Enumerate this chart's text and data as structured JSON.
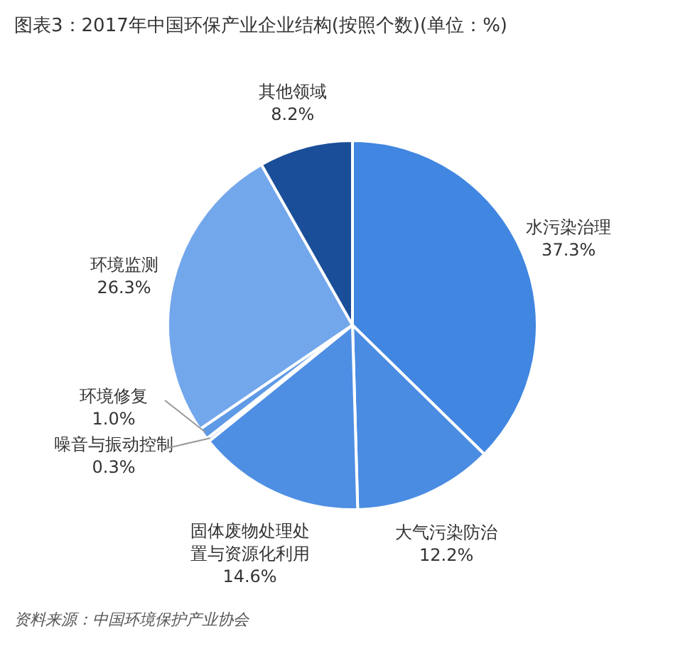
{
  "chart_data": {
    "type": "pie",
    "title": "图表3：2017年中国环保产业企业结构(按照个数)(单位：%)",
    "categories": [
      "水污染治理",
      "大气污染防治",
      "固体废物处理处置与资源化利用",
      "噪音与振动控制",
      "环境修复",
      "环境监测",
      "其他领域"
    ],
    "values": [
      37.3,
      12.2,
      14.6,
      0.3,
      1.0,
      26.3,
      8.2
    ],
    "colors": [
      "#4186e0",
      "#4a8ce2",
      "#4f8fe3",
      "#8db5ee",
      "#5f9ae6",
      "#73a7ec",
      "#1a4e98"
    ],
    "value_labels": [
      "37.3%",
      "12.2%",
      "14.6%",
      "0.3%",
      "1.0%",
      "26.3%",
      "8.2%"
    ],
    "annotations": [
      "资料来源：中国环境保护产业协会"
    ]
  }
}
